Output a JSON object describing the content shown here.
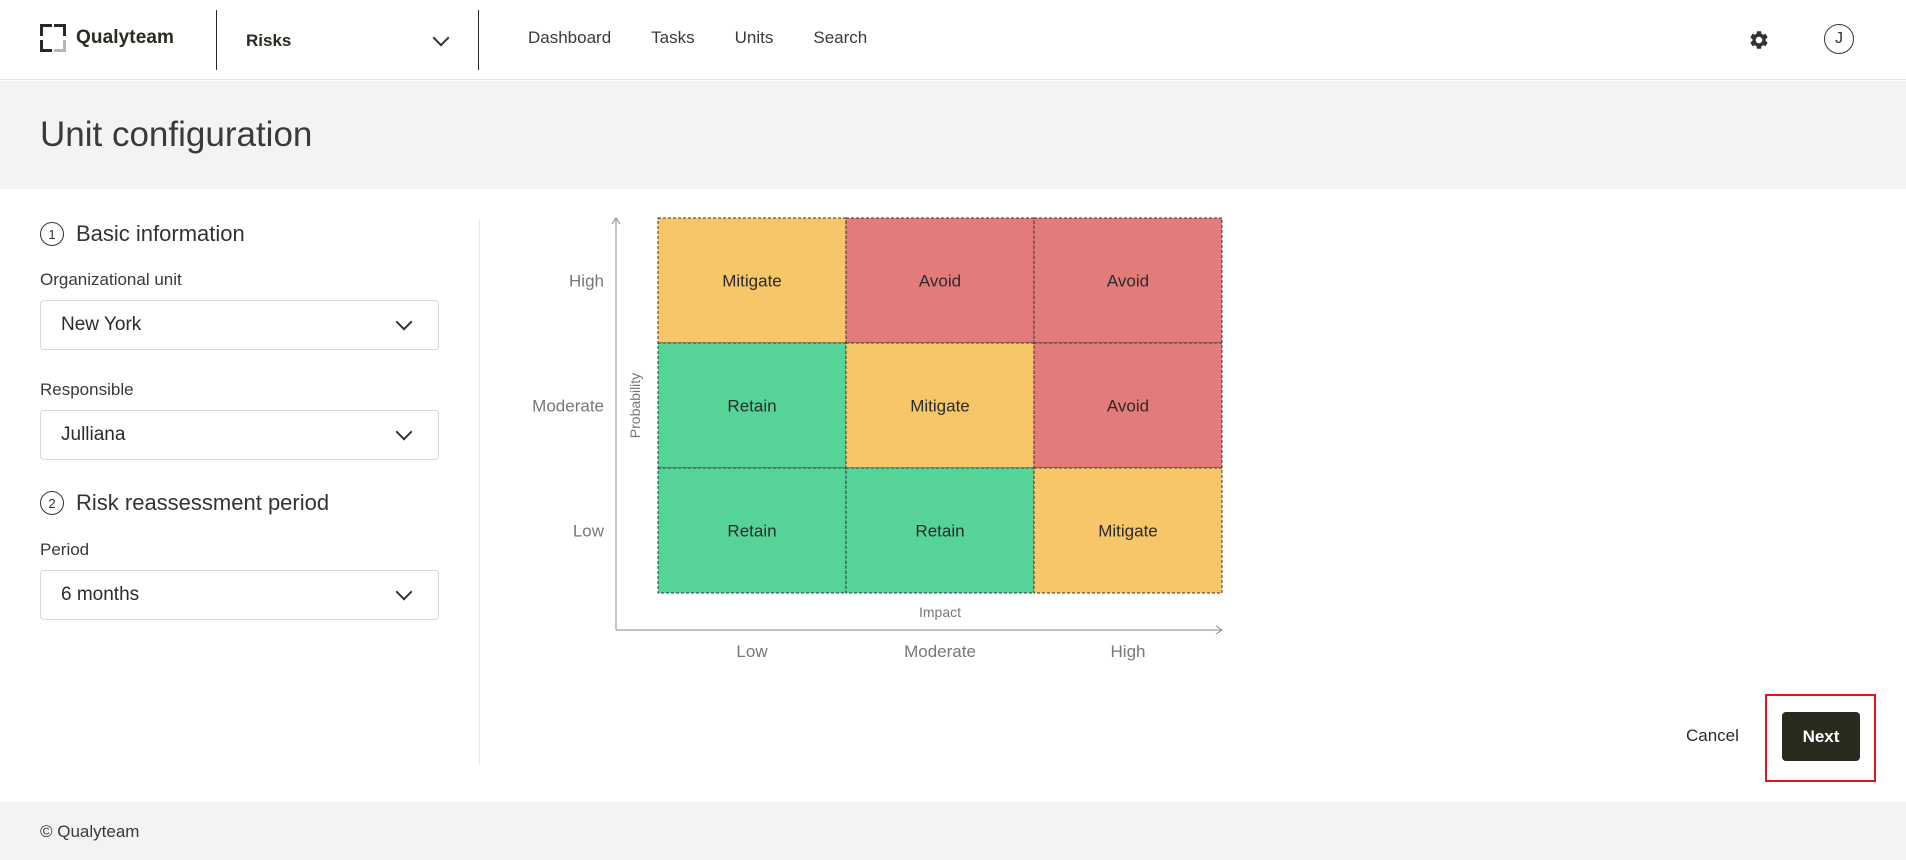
{
  "header": {
    "brand": "Qualyteam",
    "module": "Risks",
    "nav": [
      "Dashboard",
      "Tasks",
      "Units",
      "Search"
    ],
    "avatar_initial": "J"
  },
  "page": {
    "title": "Unit configuration"
  },
  "sections": {
    "basic": {
      "step": "1",
      "title": "Basic information",
      "org_unit_label": "Organizational unit",
      "org_unit_value": "New York",
      "responsible_label": "Responsible",
      "responsible_value": "Julliana"
    },
    "period": {
      "step": "2",
      "title": "Risk reassessment period",
      "period_label": "Period",
      "period_value": "6 months"
    }
  },
  "matrix": {
    "x_axis_label": "Impact",
    "y_axis_label": "Probability",
    "x_ticks": [
      "Low",
      "Moderate",
      "High"
    ],
    "y_ticks": [
      "High",
      "Moderate",
      "Low"
    ],
    "rows": [
      [
        "Mitigate",
        "Avoid",
        "Avoid"
      ],
      [
        "Retain",
        "Mitigate",
        "Avoid"
      ],
      [
        "Retain",
        "Retain",
        "Mitigate"
      ]
    ],
    "colors": {
      "Mitigate": "#f7c668",
      "Avoid": "#e47b7b",
      "Retain": "#56d498"
    }
  },
  "actions": {
    "cancel": "Cancel",
    "next": "Next"
  },
  "footer": {
    "copyright": "© Qualyteam"
  }
}
